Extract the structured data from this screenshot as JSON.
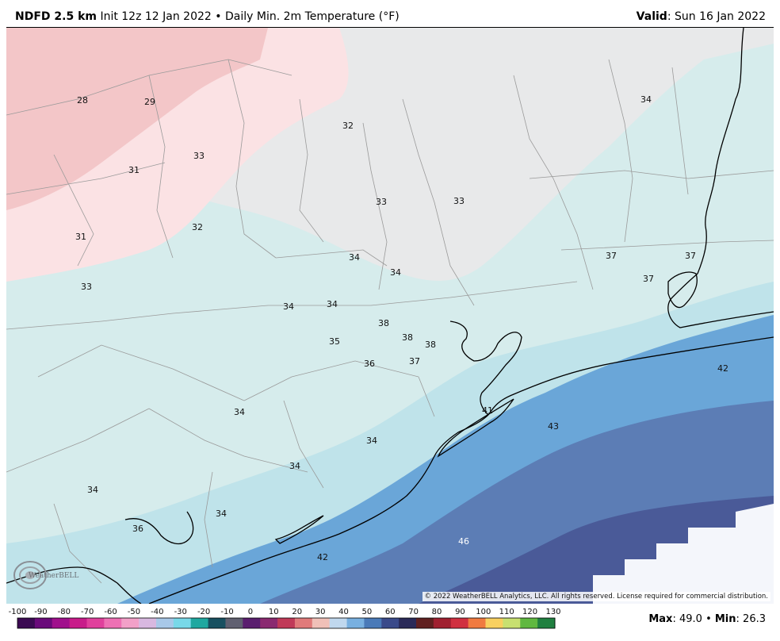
{
  "header": {
    "model": "NDFD 2.5 km",
    "init": "Init 12z 12 Jan 2022",
    "separator": "•",
    "product": "Daily Min. 2m Temperature (°F)",
    "valid_label": "Valid",
    "valid_value": ": Sun 16 Jan 2022"
  },
  "map": {
    "colors": {
      "cold_pink": "#f3c6c8",
      "light_pink": "#fbe2e4",
      "neutral": "#e8e9ea",
      "pale_teal": "#d6ecec",
      "light_blue": "#bfe3ea",
      "mid_blue": "#6aa6d8",
      "dark_blue": "#5c7db5",
      "deep_blue": "#4a5a98",
      "no_data": "#f4f6fb",
      "outline": "#000000",
      "county_line": "#9a9a9a"
    },
    "temperature_labels": [
      {
        "value": "28"
      },
      {
        "value": "29"
      },
      {
        "value": "32"
      },
      {
        "value": "34"
      },
      {
        "value": "33"
      },
      {
        "value": "31"
      },
      {
        "value": "33"
      },
      {
        "value": "33"
      },
      {
        "value": "32"
      },
      {
        "value": "31"
      },
      {
        "value": "34"
      },
      {
        "value": "34"
      },
      {
        "value": "33"
      },
      {
        "value": "37"
      },
      {
        "value": "37"
      },
      {
        "value": "37"
      },
      {
        "value": "34"
      },
      {
        "value": "34"
      },
      {
        "value": "38"
      },
      {
        "value": "38"
      },
      {
        "value": "38"
      },
      {
        "value": "35"
      },
      {
        "value": "36"
      },
      {
        "value": "37"
      },
      {
        "value": "42"
      },
      {
        "value": "41"
      },
      {
        "value": "43"
      },
      {
        "value": "34"
      },
      {
        "value": "34"
      },
      {
        "value": "34"
      },
      {
        "value": "34"
      },
      {
        "value": "34"
      },
      {
        "value": "36"
      },
      {
        "value": "46"
      },
      {
        "value": "42"
      }
    ],
    "copyright": "© 2022 WeatherBELL Analytics, LLC. All rights reserved. License required for commercial distribution.",
    "logo_text": "WeatherBELL",
    "logo_icon": "swirl-logo-icon"
  },
  "legend": {
    "ticks": [
      "-100",
      "-90",
      "-80",
      "-70",
      "-60",
      "-50",
      "-40",
      "-30",
      "-20",
      "-10",
      "0",
      "10",
      "20",
      "30",
      "40",
      "50",
      "60",
      "70",
      "80",
      "90",
      "100",
      "110",
      "120",
      "130"
    ],
    "colors": [
      "#3b0a52",
      "#6a0a7a",
      "#a0108c",
      "#c81c8a",
      "#e0409c",
      "#ee70b4",
      "#f2a0c8",
      "#d8b8e0",
      "#a8c8e8",
      "#78d8e8",
      "#20a8a0",
      "#185060",
      "#606070",
      "#5a1e6e",
      "#8a2a70",
      "#c03a58",
      "#e07a7a",
      "#f0c0b8",
      "#c0d8ee",
      "#78b0e0",
      "#4a7ab8",
      "#3a4a8a",
      "#2a2a58",
      "#602020",
      "#a02030",
      "#d03040",
      "#f07a40",
      "#f8d060",
      "#c8e070",
      "#60b840",
      "#208040"
    ],
    "max_label": "Max",
    "max_value": ": 49.0",
    "bullet": "•",
    "min_label": "Min",
    "min_value": ": 26.3"
  }
}
